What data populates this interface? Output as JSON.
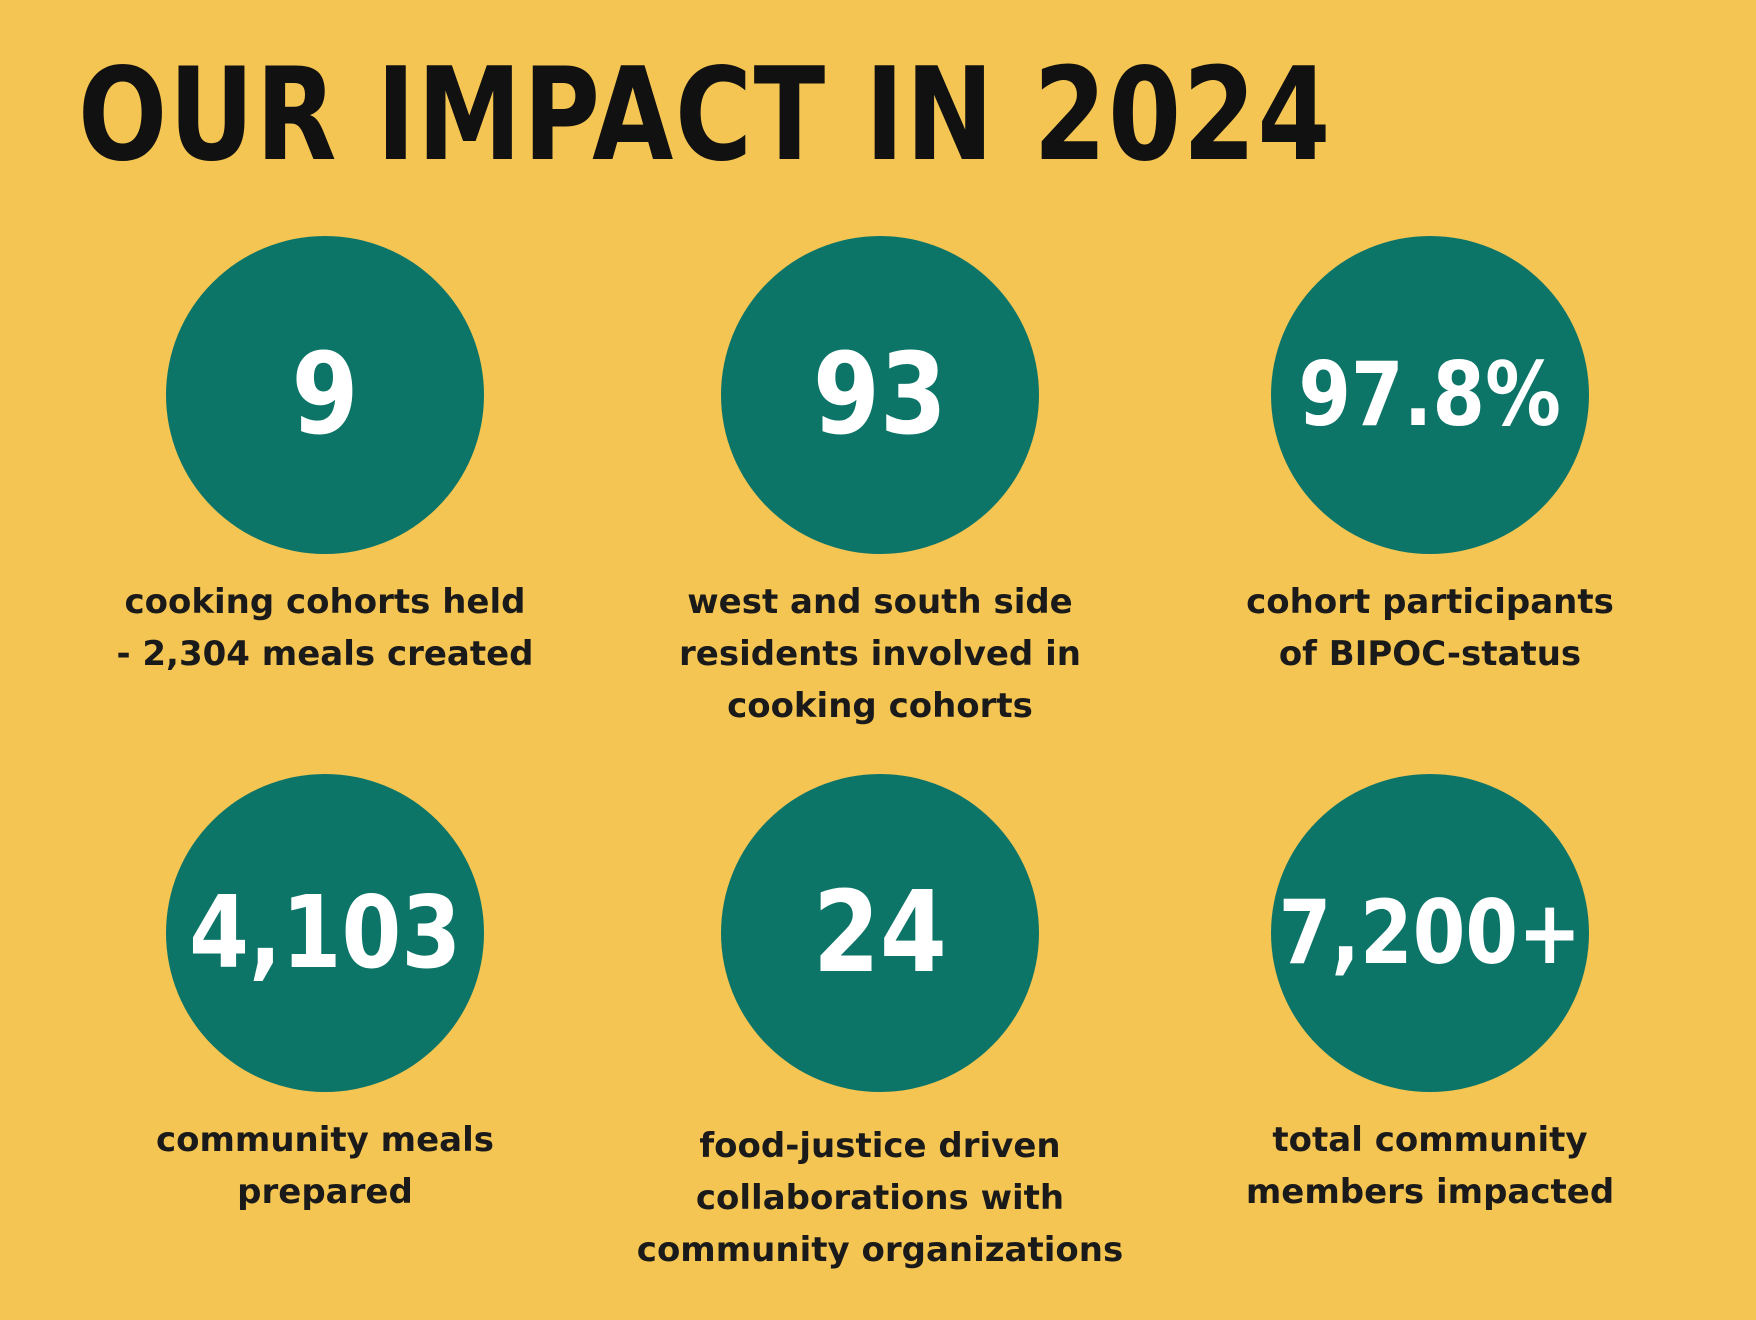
{
  "title": "OUR IMPACT IN 2024",
  "stats": [
    {
      "value": "9",
      "caption": [
        "cooking cohorts held",
        "- 2,304 meals created"
      ],
      "circle_color": "#0C7568"
    },
    {
      "value": "93",
      "caption": [
        "west and south side",
        "residents involved in",
        "cooking cohorts"
      ],
      "circle_color": "#0C7568"
    },
    {
      "value": "97.8%",
      "caption": [
        "cohort participants",
        "of BIPOC-status"
      ],
      "circle_color": "#0C7568"
    },
    {
      "value": "4,103",
      "caption": [
        "community meals",
        "prepared"
      ],
      "circle_color": "#0C7568"
    },
    {
      "value": "24",
      "caption": [
        "food-justice driven",
        "collaborations with",
        "community organizations"
      ],
      "circle_color": "#0C7568"
    },
    {
      "value": "7,200+",
      "caption": [
        "total community",
        "members impacted"
      ],
      "circle_color": "#0C7568"
    }
  ],
  "colors": {
    "background": "#F4C552",
    "circle": "#0C7568",
    "title_text": "#111111",
    "value_text": "#FFFFFF",
    "caption_text": "#1A1A1A"
  }
}
